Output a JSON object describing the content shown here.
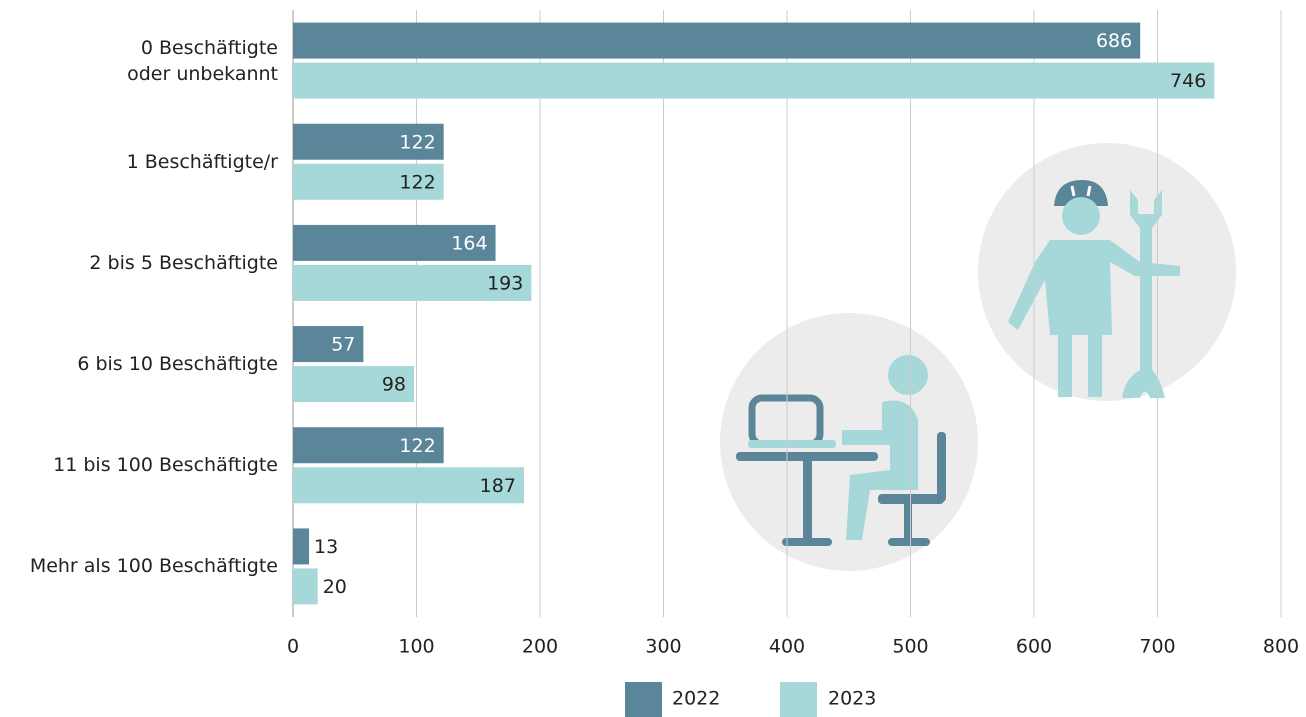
{
  "chart_data": {
    "type": "bar",
    "orientation": "horizontal",
    "categories": [
      "0 Beschäftigte\noder unbekannt",
      "1 Beschäftigte/r",
      "2 bis 5 Beschäftigte",
      "6 bis 10 Beschäftigte",
      "11 bis 100 Beschäftigte",
      "Mehr als 100 Beschäftigte"
    ],
    "series": [
      {
        "name": "2022",
        "color": "#5b8699",
        "values": [
          686,
          122,
          164,
          57,
          122,
          13
        ]
      },
      {
        "name": "2023",
        "color": "#a6d8da",
        "values": [
          746,
          122,
          193,
          98,
          187,
          20
        ]
      }
    ],
    "xlim": [
      0,
      800
    ],
    "xticks": [
      0,
      100,
      200,
      300,
      400,
      500,
      600,
      700,
      800
    ],
    "grid": true,
    "legend": "bottom"
  }
}
